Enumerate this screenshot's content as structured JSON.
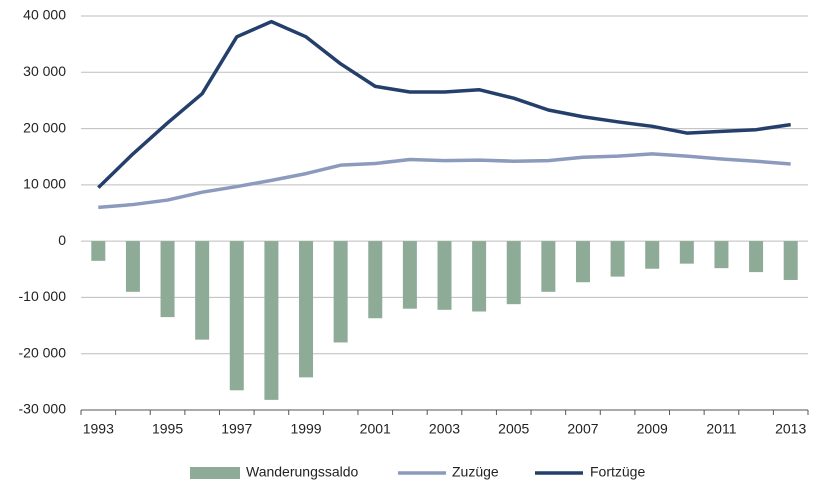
{
  "chart_data": {
    "type": "combo",
    "categories": [
      "1993",
      null,
      "1995",
      null,
      "1997",
      null,
      "1999",
      null,
      "2001",
      null,
      "2003",
      null,
      "2005",
      null,
      "2007",
      null,
      "2009",
      null,
      "2011",
      null,
      "2013"
    ],
    "series": [
      {
        "name": "Wanderungssaldo",
        "type": "bar",
        "color": "#8eab98",
        "values": [
          -3500,
          -9000,
          -13500,
          -17500,
          -26500,
          -28200,
          -24200,
          -18000,
          -13700,
          -12000,
          -12200,
          -12500,
          -11200,
          -9000,
          -7300,
          -6300,
          -4900,
          -4000,
          -4800,
          -5500,
          -6900
        ]
      },
      {
        "name": "Zuzüge",
        "type": "line",
        "color": "#8c9bbd",
        "values": [
          6000,
          6500,
          7300,
          8700,
          9700,
          10800,
          12000,
          13500,
          13800,
          14500,
          14300,
          14400,
          14200,
          14300,
          14900,
          15100,
          15500,
          15100,
          14600,
          14200,
          13700
        ]
      },
      {
        "name": "Fortzüge",
        "type": "line",
        "color": "#243f6b",
        "values": [
          9500,
          15500,
          21000,
          26200,
          36300,
          39000,
          36300,
          31500,
          27500,
          26500,
          26500,
          26900,
          25400,
          23300,
          22100,
          21200,
          20400,
          19200,
          19500,
          19800,
          20700
        ]
      }
    ],
    "ylim": [
      -30000,
      40000
    ],
    "yticks": [
      {
        "value": -30000,
        "label": "-30 000"
      },
      {
        "value": -20000,
        "label": "-20 000"
      },
      {
        "value": -10000,
        "label": "-10 000"
      },
      0,
      {
        "value": 10000,
        "label": "10 000"
      },
      {
        "value": 20000,
        "label": "20 000"
      },
      {
        "value": 30000,
        "label": "30 000"
      },
      {
        "value": 40000,
        "label": "40 000"
      }
    ],
    "grid": true,
    "legend": "bottom"
  }
}
